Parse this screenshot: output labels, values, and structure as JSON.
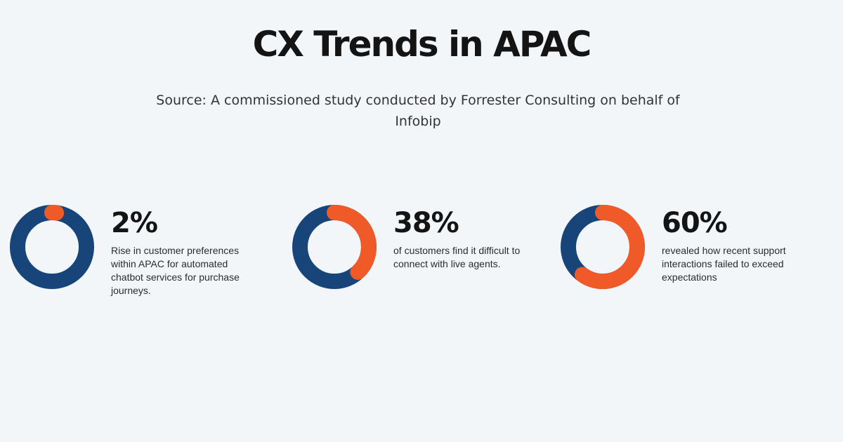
{
  "title": "CX Trends in APAC",
  "subtitle": "Source: A commissioned study conducted by Forrester Consulting on behalf of Infobip",
  "colors": {
    "ring": "#17457a",
    "accent": "#f05a28",
    "background": "#f3f6f9"
  },
  "chart_data": [
    {
      "type": "pie",
      "value": 2,
      "label": "2%",
      "description": "Rise in customer preferences within APAC for automated chatbot services for purchase journeys."
    },
    {
      "type": "pie",
      "value": 38,
      "label": "38%",
      "description": "of customers find it difficult to connect with live agents."
    },
    {
      "type": "pie",
      "value": 60,
      "label": "60%",
      "description": "revealed how recent support interactions failed to exceed expectations"
    }
  ]
}
